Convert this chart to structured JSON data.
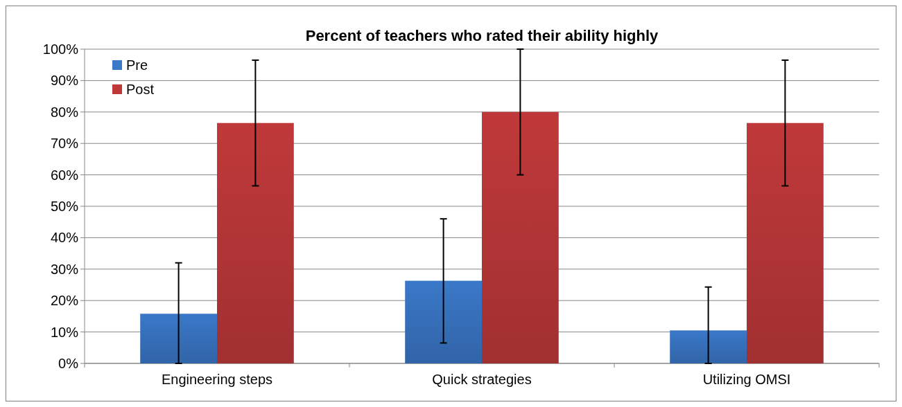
{
  "chart_data": {
    "type": "bar",
    "title": "Percent of teachers who rated their ability highly",
    "categories": [
      "Engineering steps",
      "Quick strategies",
      "Utilizing OMSI"
    ],
    "series": [
      {
        "name": "Pre",
        "color": "#3a78c8",
        "values": [
          15.8,
          26.3,
          10.5
        ],
        "errors": [
          [
            0,
            32
          ],
          [
            6.5,
            46
          ],
          [
            0,
            24.3
          ]
        ]
      },
      {
        "name": "Post",
        "color": "#c0393a",
        "values": [
          76.5,
          80,
          76.5
        ],
        "errors": [
          [
            56.5,
            96.5
          ],
          [
            60,
            100
          ],
          [
            56.5,
            96.5
          ]
        ]
      }
    ],
    "ylim": [
      0,
      100
    ],
    "yticks": [
      {
        "value": 0,
        "label": "0%"
      },
      {
        "value": 10,
        "label": "10%"
      },
      {
        "value": 20,
        "label": "20%"
      },
      {
        "value": 30,
        "label": "30%"
      },
      {
        "value": 40,
        "label": "40%"
      },
      {
        "value": 50,
        "label": "50%"
      },
      {
        "value": 60,
        "label": "60%"
      },
      {
        "value": 70,
        "label": "70%"
      },
      {
        "value": 80,
        "label": "80%"
      },
      {
        "value": 90,
        "label": "90%"
      },
      {
        "value": 100,
        "label": "100%"
      }
    ],
    "grid": "y",
    "legend": "top left"
  }
}
